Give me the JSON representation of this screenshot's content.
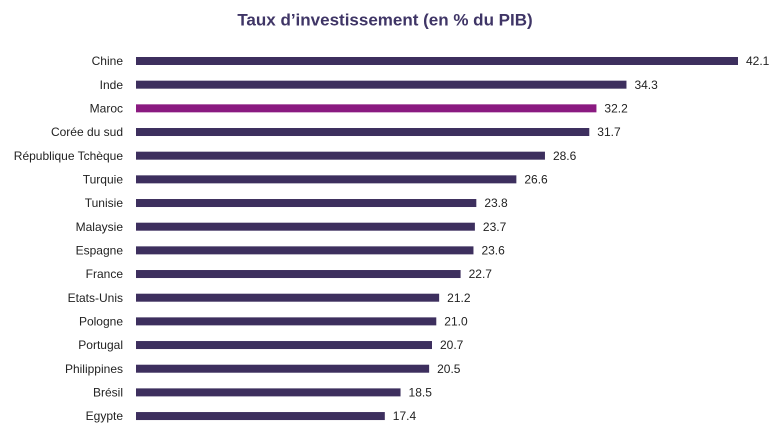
{
  "chart_data": {
    "type": "hbar",
    "title": "Taux d’investissement (en % du PIB)",
    "categories": [
      "Chine",
      "Inde",
      "Maroc",
      "Corée du sud",
      "République Tchèque",
      "Turquie",
      "Tunisie",
      "Malaysie",
      "Espagne",
      "France",
      "Etats-Unis",
      "Pologne",
      "Portugal",
      "Philippines",
      "Brésil",
      "Egypte"
    ],
    "values": [
      42.1,
      34.3,
      32.2,
      31.7,
      28.6,
      26.6,
      23.8,
      23.7,
      23.6,
      22.7,
      21.2,
      21.0,
      20.7,
      20.5,
      18.5,
      17.4
    ],
    "value_labels": [
      "42.1",
      "34.3",
      "32.2",
      "31.7",
      "28.6",
      "26.6",
      "23.8",
      "23.7",
      "23.6",
      "22.7",
      "21.2",
      "21.0",
      "20.7",
      "20.5",
      "18.5",
      "17.4"
    ],
    "colors": [
      "#3d2f5e",
      "#3d2f5e",
      "#8a1a80",
      "#3d2f5e",
      "#3d2f5e",
      "#3d2f5e",
      "#3d2f5e",
      "#3d2f5e",
      "#3d2f5e",
      "#3d2f5e",
      "#3d2f5e",
      "#3d2f5e",
      "#3d2f5e",
      "#3d2f5e",
      "#3d2f5e",
      "#3d2f5e"
    ]
  }
}
